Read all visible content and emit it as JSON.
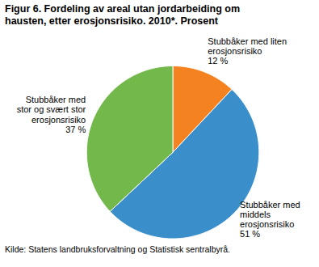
{
  "chart_data": {
    "type": "pie",
    "title": "Figur 6. Fordeling av areal utan jordarbeiding om hausten, etter erosjonsrisiko. 2010*. Prosent",
    "categories": [
      "Stubbåker med liten\nerosjonsrisiko",
      "Stubbåker med\nmiddels\nerosjonsrisiko",
      "Stubbåker med\nstor og svært stor\nerosjonsrisiko"
    ],
    "values": [
      12,
      51,
      37
    ],
    "value_labels": [
      "12 %",
      "51 %",
      "37 %"
    ],
    "colors": [
      "#f58220",
      "#3a8fcb",
      "#72b84b"
    ],
    "data_labels": true,
    "caption": "Kilde: Statens landbruksforvaltning og Statistisk sentralbyrå."
  }
}
